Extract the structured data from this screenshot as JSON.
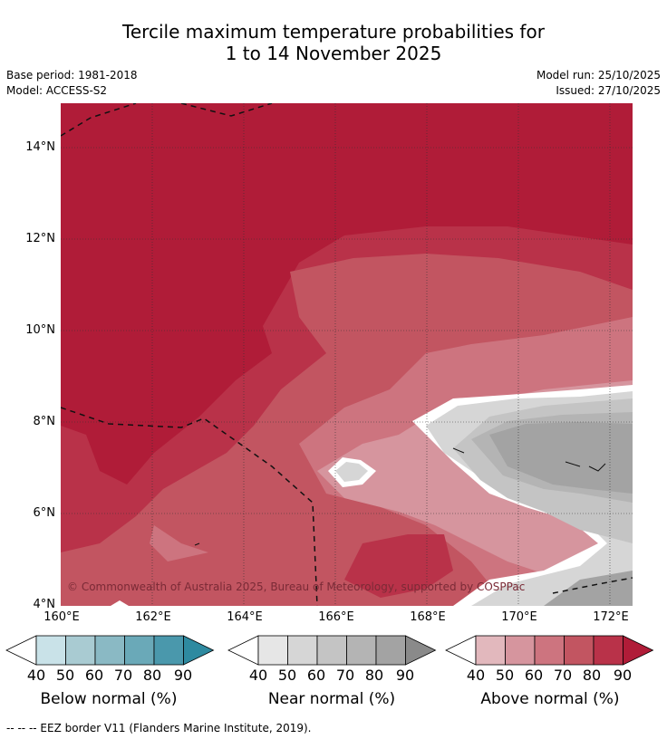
{
  "header": {
    "title_line1": "Tercile maximum temperature probabilities for",
    "title_line2": "1 to 14 November 2025",
    "base_period": "Base period: 1981-2018",
    "model": "Model: ACCESS-S2",
    "model_run": "Model run: 25/10/2025",
    "issued": "Issued: 27/10/2025"
  },
  "map": {
    "y_ticks": [
      "14°N",
      "12°N",
      "10°N",
      "8°N",
      "6°N",
      "4°N"
    ],
    "x_ticks": [
      "160°E",
      "162°E",
      "164°E",
      "166°E",
      "168°E",
      "170°E",
      "172°E"
    ],
    "copyright": "© Commonwealth of Australia 2025, Bureau of Meteorology, supported by COSPPac"
  },
  "legend": {
    "below": {
      "title": "Below normal (%)",
      "ticks": [
        "40",
        "50",
        "60",
        "70",
        "80",
        "90"
      ],
      "colors": [
        "#c9e2e8",
        "#a9cbd2",
        "#8ab9c4",
        "#6aa9b8",
        "#4a98ac",
        "#2e8aa0"
      ]
    },
    "near": {
      "title": "Near normal (%)",
      "ticks": [
        "40",
        "50",
        "60",
        "70",
        "80",
        "90"
      ],
      "colors": [
        "#e6e6e6",
        "#d6d6d6",
        "#c4c4c4",
        "#b4b4b4",
        "#a3a3a3",
        "#8a8a8a"
      ]
    },
    "above": {
      "title": "Above normal (%)",
      "ticks": [
        "40",
        "50",
        "60",
        "70",
        "80",
        "90"
      ],
      "colors": [
        "#e2b8bd",
        "#d6959e",
        "#cd747f",
        "#c25561",
        "#b93249",
        "#b01c38"
      ]
    }
  },
  "footer": {
    "eez_note": "--  --  -- EEZ border V11 (Flanders Marine Institute, 2019)."
  }
}
